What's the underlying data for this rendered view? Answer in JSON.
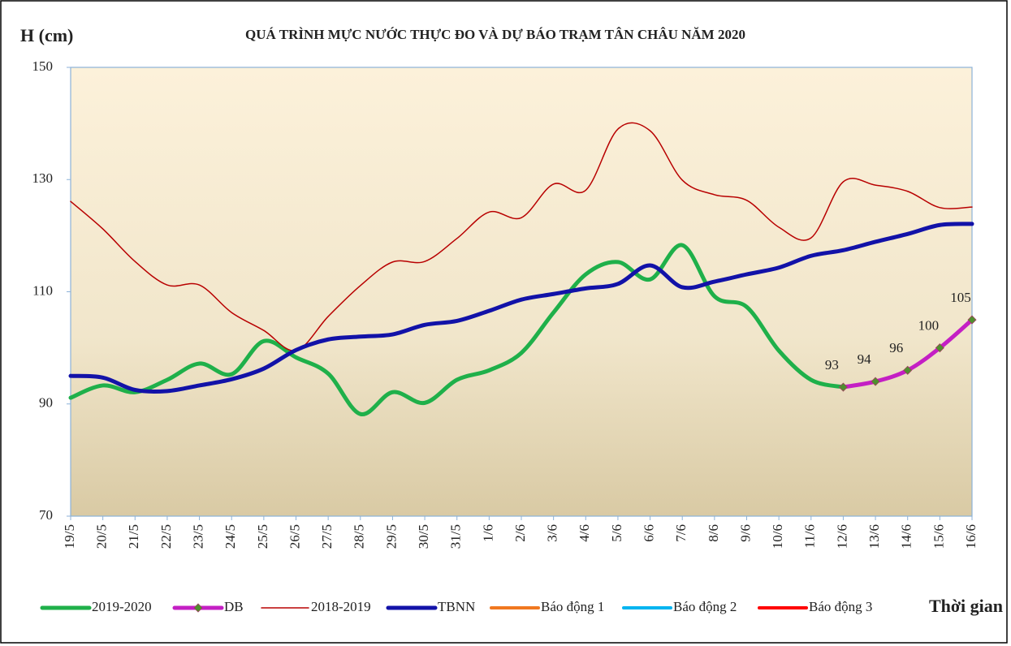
{
  "chart_data": {
    "type": "line",
    "title": "QUÁ TRÌNH MỰC NƯỚC THỰC ĐO VÀ DỰ BÁO TRẠM TÂN CHÂU NĂM 2020",
    "y_label": "H (cm)",
    "x_label": "Thời gian",
    "categories": [
      "19/5",
      "20/5",
      "21/5",
      "22/5",
      "23/5",
      "24/5",
      "25/5",
      "26/5",
      "27/5",
      "28/5",
      "29/5",
      "30/5",
      "31/5",
      "1/6",
      "2/6",
      "3/6",
      "4/6",
      "5/6",
      "6/6",
      "7/6",
      "8/6",
      "9/6",
      "10/6",
      "11/6",
      "12/6",
      "13/6",
      "14/6",
      "15/6",
      "16/6"
    ],
    "ylim": [
      70,
      150
    ],
    "yticks": [
      70,
      90,
      110,
      130,
      150
    ],
    "grid": false,
    "legend": "bottom",
    "series": [
      {
        "name": "2019-2020",
        "color": "#1fb04a",
        "width": 5,
        "values": [
          91.1,
          93.3,
          92.1,
          94.3,
          97.2,
          95.3,
          101.2,
          98.3,
          95.4,
          88.2,
          92.1,
          90.2,
          94.3,
          96.0,
          99.1,
          106.3,
          113.1,
          115.3,
          112.2,
          118.3,
          109.2,
          107.3,
          99.5,
          94.3,
          93,
          null,
          null,
          null,
          null
        ]
      },
      {
        "name": "DB",
        "color": "#c41fc4",
        "width": 5,
        "marker": "diamond",
        "marker_color": "#4f8f2f",
        "data_labels": true,
        "values": [
          null,
          null,
          null,
          null,
          null,
          null,
          null,
          null,
          null,
          null,
          null,
          null,
          null,
          null,
          null,
          null,
          null,
          null,
          null,
          null,
          null,
          null,
          null,
          null,
          93,
          94,
          96,
          100,
          105
        ]
      },
      {
        "name": "2018-2019",
        "color": "#b80000",
        "width": 1.5,
        "values": [
          126.1,
          121.2,
          115.4,
          111.2,
          111.2,
          106.3,
          103.1,
          99.5,
          105.6,
          111.1,
          115.3,
          115.4,
          119.5,
          124.2,
          123.2,
          129.2,
          128.1,
          139.0,
          138.7,
          129.9,
          127.3,
          126.3,
          121.5,
          119.6,
          129.6,
          129.0,
          127.9,
          125.0,
          125.1
        ]
      },
      {
        "name": "TBNN",
        "color": "#1212a8",
        "width": 5,
        "values": [
          95.0,
          94.7,
          92.5,
          92.3,
          93.3,
          94.4,
          96.3,
          99.6,
          101.5,
          102.0,
          102.4,
          104.1,
          104.8,
          106.6,
          108.6,
          109.6,
          110.6,
          111.4,
          114.7,
          110.8,
          111.8,
          113.1,
          114.3,
          116.4,
          117.4,
          118.9,
          120.3,
          121.9,
          122.1
        ]
      },
      {
        "name": "Báo động 1",
        "color": "#f07820",
        "width": 4,
        "values": [
          null,
          null,
          null,
          null,
          null,
          null,
          null,
          null,
          null,
          null,
          null,
          null,
          null,
          null,
          null,
          null,
          null,
          null,
          null,
          null,
          null,
          null,
          null,
          null,
          null,
          null,
          null,
          null,
          null
        ]
      },
      {
        "name": "Báo động 2",
        "color": "#00b4f0",
        "width": 4,
        "values": [
          null,
          null,
          null,
          null,
          null,
          null,
          null,
          null,
          null,
          null,
          null,
          null,
          null,
          null,
          null,
          null,
          null,
          null,
          null,
          null,
          null,
          null,
          null,
          null,
          null,
          null,
          null,
          null,
          null
        ]
      },
      {
        "name": "Báo động 3",
        "color": "#ff0000",
        "width": 4,
        "values": [
          null,
          null,
          null,
          null,
          null,
          null,
          null,
          null,
          null,
          null,
          null,
          null,
          null,
          null,
          null,
          null,
          null,
          null,
          null,
          null,
          null,
          null,
          null,
          null,
          null,
          null,
          null,
          null,
          null
        ]
      }
    ]
  }
}
